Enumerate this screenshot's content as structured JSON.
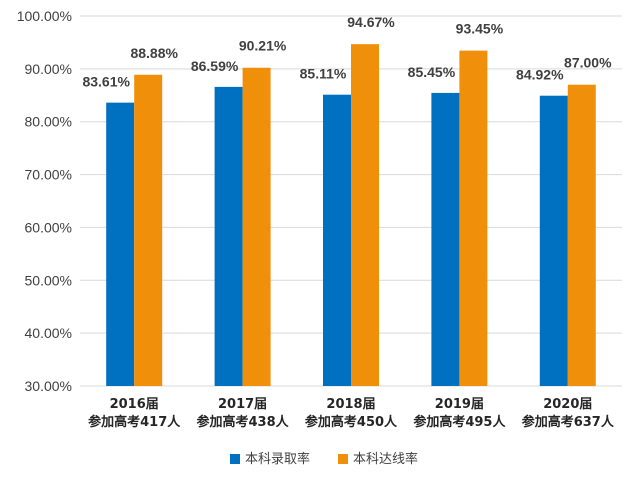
{
  "chart_data": {
    "type": "bar",
    "categories": [
      {
        "line1": "2016届",
        "line2": "参加高考417人"
      },
      {
        "line1": "2017届",
        "line2": "参加高考438人"
      },
      {
        "line1": "2018届",
        "line2": "参加高考450人"
      },
      {
        "line1": "2019届",
        "line2": "参加高考495人"
      },
      {
        "line1": "2020届",
        "line2": "参加高考637人"
      }
    ],
    "series": [
      {
        "name": "本科录取率",
        "color": "#0070C0",
        "values": [
          83.61,
          86.59,
          85.11,
          85.45,
          84.92
        ],
        "labels": [
          "83.61%",
          "86.59%",
          "85.11%",
          "85.45%",
          "84.92%"
        ]
      },
      {
        "name": "本科达线率",
        "color": "#F0900A",
        "values": [
          88.88,
          90.21,
          94.67,
          93.45,
          87.0
        ],
        "labels": [
          "88.88%",
          "90.21%",
          "94.67%",
          "93.45%",
          "87.00%"
        ]
      }
    ],
    "ylim": [
      30,
      100
    ],
    "yticks": [
      30,
      40,
      50,
      60,
      70,
      80,
      90,
      100
    ],
    "ytick_labels": [
      "30.00%",
      "40.00%",
      "50.00%",
      "60.00%",
      "70.00%",
      "80.00%",
      "90.00%",
      "100.00%"
    ],
    "grid": true,
    "grid_color": "#D9D9D9",
    "legend_position": "bottom"
  }
}
